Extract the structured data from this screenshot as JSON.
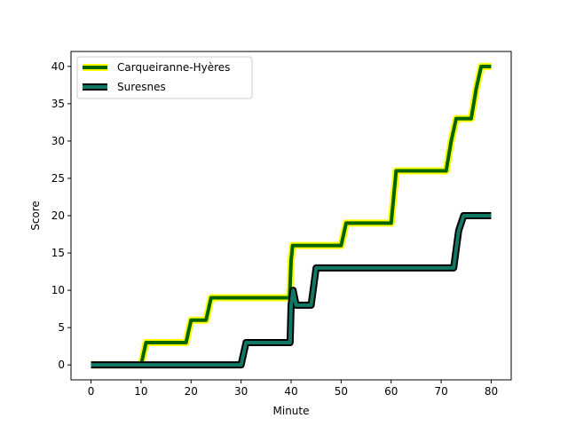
{
  "chart_data": {
    "type": "line",
    "xlabel": "Minute",
    "ylabel": "Score",
    "xlim": [
      -4,
      84
    ],
    "ylim": [
      -2,
      42
    ],
    "xticks": [
      0,
      10,
      20,
      30,
      40,
      50,
      60,
      70,
      80
    ],
    "yticks": [
      0,
      5,
      10,
      15,
      20,
      25,
      30,
      35,
      40
    ],
    "legend_position": "top-left",
    "grid": false,
    "series": [
      {
        "name": "Carqueiranne-Hyères",
        "color": "#006400",
        "outline_color": "#ffff00",
        "x": [
          0,
          10,
          11,
          19,
          20,
          23,
          24,
          39.7,
          40,
          40.3,
          50,
          51,
          60,
          61,
          71,
          72,
          73,
          76,
          77,
          78,
          80
        ],
        "y": [
          0,
          0,
          3,
          3,
          6,
          6,
          9,
          9,
          14,
          16,
          16,
          19,
          19,
          26,
          26,
          30,
          33,
          33,
          37,
          40,
          40
        ]
      },
      {
        "name": "Suresnes",
        "color": "#117864",
        "outline_color": "#000000",
        "x": [
          0,
          30,
          31,
          39.8,
          40,
          40.4,
          41,
          44,
          45,
          72.5,
          73.5,
          74.5,
          80
        ],
        "y": [
          0,
          0,
          3,
          3,
          8,
          10,
          8,
          8,
          13,
          13,
          18,
          20,
          20
        ]
      }
    ]
  }
}
